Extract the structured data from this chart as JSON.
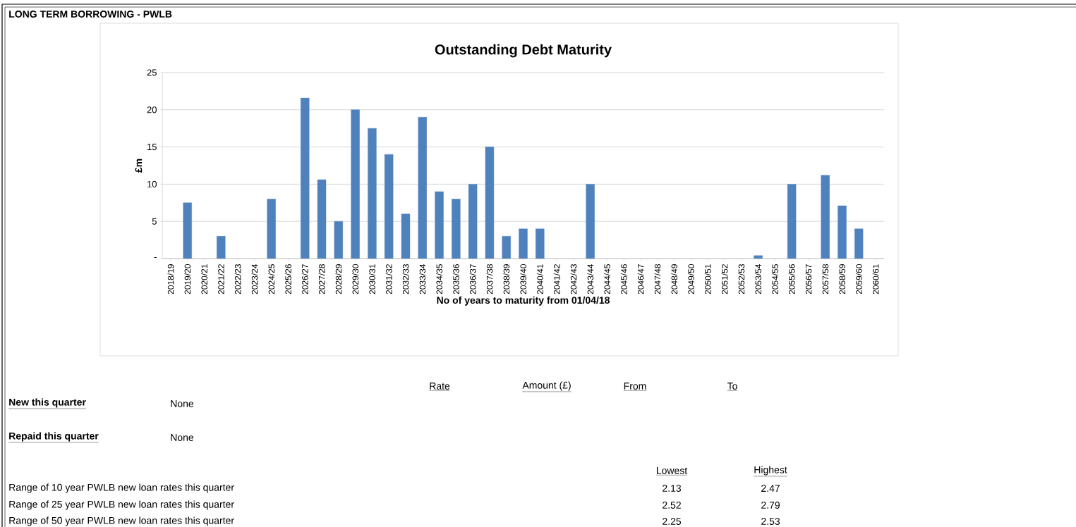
{
  "chart_data": {
    "type": "bar",
    "title": "Outstanding Debt Maturity",
    "xlabel": "No of years to maturity from 01/04/18",
    "ylabel": "£m",
    "categories": [
      "2018/19",
      "2019/20",
      "2020/21",
      "2021/22",
      "2022/23",
      "2023/24",
      "2024/25",
      "2025/26",
      "2026/27",
      "2027/28",
      "2028/29",
      "2029/30",
      "2030/31",
      "2031/32",
      "2032/33",
      "2033/34",
      "2034/35",
      "2035/36",
      "2036/37",
      "2037/38",
      "2038/39",
      "2039/40",
      "2040/41",
      "2041/42",
      "2042/43",
      "2043/44",
      "2044/45",
      "2045/46",
      "2046/47",
      "2047/48",
      "2048/49",
      "2049/50",
      "2050/51",
      "2051/52",
      "2052/53",
      "2053/54",
      "2054/55",
      "2055/56",
      "2056/57",
      "2057/58",
      "2058/59",
      "2059/60",
      "2060/61"
    ],
    "values": [
      null,
      7.5,
      null,
      3,
      null,
      null,
      8,
      null,
      21.6,
      10.6,
      5,
      20,
      17.5,
      14,
      6,
      19,
      9,
      8,
      10,
      15,
      3,
      4,
      4,
      null,
      null,
      10,
      null,
      null,
      null,
      null,
      null,
      null,
      null,
      null,
      null,
      0.4,
      null,
      10,
      null,
      11.2,
      7.1,
      4,
      null
    ],
    "color": "#4f81bd",
    "ylim": [
      0,
      25
    ],
    "yticks": [
      {
        "value": 0,
        "label": "-"
      },
      5,
      10,
      15,
      20,
      25
    ],
    "grid": "y",
    "annotations": [
      "LONG TERM BORROWING - PWLB",
      "Rate",
      "Amount (£)",
      "From",
      "To",
      "New this quarter",
      "None",
      "Repaid this quarter",
      "None",
      "Lowest",
      "Highest",
      "Range of 10 year PWLB new loan rates this quarter",
      "2.13",
      "2.47",
      "Range of 25 year PWLB new loan rates this quarter",
      "2.52",
      "2.79",
      "Range of 50 year PWLB new loan rates this quarter",
      "2.25",
      "2.53"
    ]
  }
}
